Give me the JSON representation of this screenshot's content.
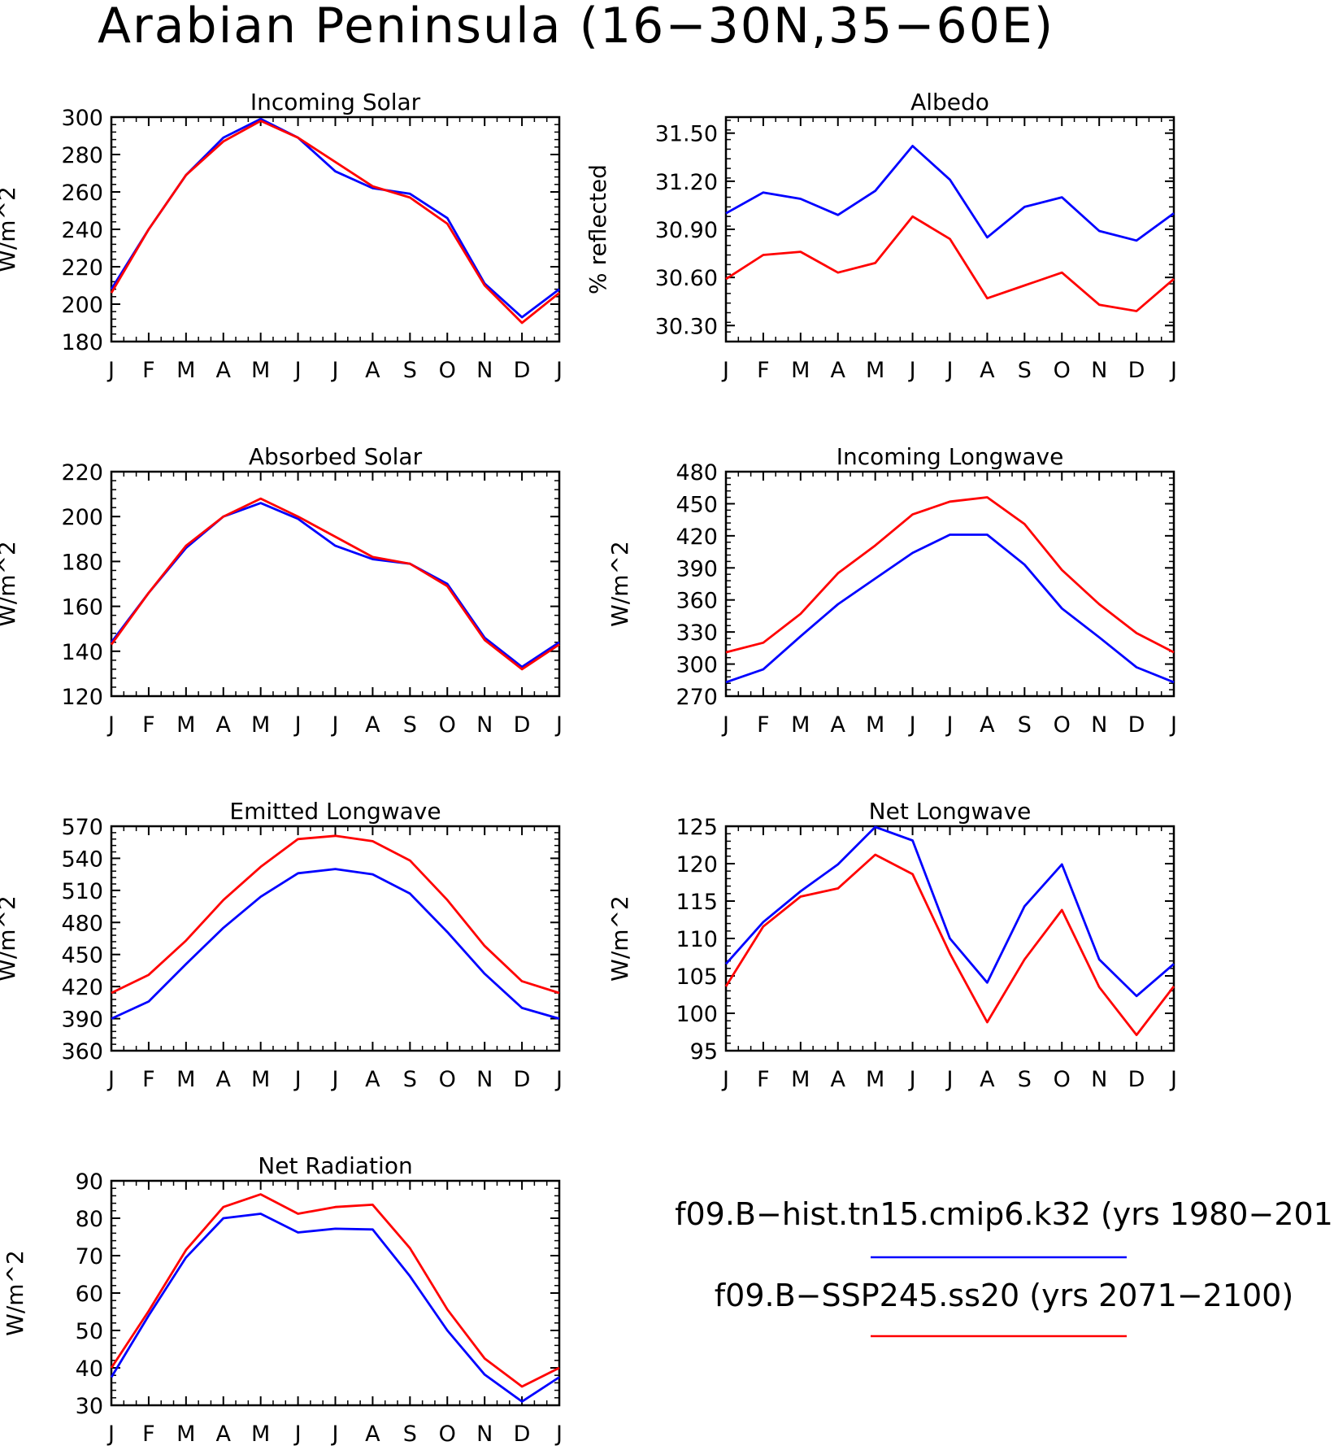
{
  "title": "Arabian Peninsula (16−30N,35−60E)",
  "colors": {
    "hist": "#0000ff",
    "ssp": "#ff0000",
    "axis": "#000000"
  },
  "legend": {
    "items": [
      {
        "label": "f09.B−hist.tn15.cmip6.k32 (yrs 1980−201",
        "color": "#0000ff"
      },
      {
        "label": "f09.B−SSP245.ss20 (yrs 2071−2100)",
        "color": "#ff0000"
      }
    ]
  },
  "chart_data": [
    {
      "id": "incoming-solar",
      "type": "line",
      "title": "Incoming Solar",
      "ylabel": "W/m^2",
      "categories": [
        "J",
        "F",
        "M",
        "A",
        "M",
        "J",
        "J",
        "A",
        "S",
        "O",
        "N",
        "D",
        "J"
      ],
      "ylim": [
        180,
        300
      ],
      "yticks": [
        180,
        200,
        220,
        240,
        260,
        280,
        300
      ],
      "ytick_labels": [
        "180",
        "200",
        "220",
        "240",
        "260",
        "280",
        "300"
      ],
      "series": [
        {
          "key": "hist",
          "values": [
            208,
            240,
            269,
            289,
            299,
            289,
            271,
            262,
            259,
            246,
            211,
            193,
            208
          ]
        },
        {
          "key": "ssp",
          "values": [
            206,
            240,
            269,
            287,
            298,
            289,
            276,
            263,
            257,
            243,
            210,
            190,
            206
          ]
        }
      ]
    },
    {
      "id": "albedo",
      "type": "line",
      "title": "Albedo",
      "ylabel": "% reflected",
      "categories": [
        "J",
        "F",
        "M",
        "A",
        "M",
        "J",
        "J",
        "A",
        "S",
        "O",
        "N",
        "D",
        "J"
      ],
      "ylim": [
        30.2,
        31.6
      ],
      "yticks": [
        30.3,
        30.6,
        30.9,
        31.2,
        31.5
      ],
      "ytick_labels": [
        "30.30",
        "30.60",
        "30.90",
        "31.20",
        "31.50"
      ],
      "series": [
        {
          "key": "hist",
          "values": [
            31.0,
            31.13,
            31.09,
            30.99,
            31.14,
            31.42,
            31.21,
            30.85,
            31.04,
            31.1,
            30.89,
            30.83,
            31.0
          ]
        },
        {
          "key": "ssp",
          "values": [
            30.59,
            30.74,
            30.76,
            30.63,
            30.69,
            30.98,
            30.84,
            30.47,
            30.55,
            30.63,
            30.43,
            30.39,
            30.59
          ]
        }
      ]
    },
    {
      "id": "absorbed-solar",
      "type": "line",
      "title": "Absorbed Solar",
      "ylabel": "W/m^2",
      "categories": [
        "J",
        "F",
        "M",
        "A",
        "M",
        "J",
        "J",
        "A",
        "S",
        "O",
        "N",
        "D",
        "J"
      ],
      "ylim": [
        120,
        220
      ],
      "yticks": [
        120,
        140,
        160,
        180,
        200,
        220
      ],
      "ytick_labels": [
        "120",
        "140",
        "160",
        "180",
        "200",
        "220"
      ],
      "series": [
        {
          "key": "hist",
          "values": [
            144,
            166,
            186,
            200,
            206,
            199,
            187,
            181,
            179,
            170,
            146,
            133,
            144
          ]
        },
        {
          "key": "ssp",
          "values": [
            143,
            166,
            187,
            200,
            208,
            200,
            191,
            182,
            179,
            169,
            145,
            132,
            143
          ]
        }
      ]
    },
    {
      "id": "incoming-longwave",
      "type": "line",
      "title": "Incoming Longwave",
      "ylabel": "W/m^2",
      "categories": [
        "J",
        "F",
        "M",
        "A",
        "M",
        "J",
        "J",
        "A",
        "S",
        "O",
        "N",
        "D",
        "J"
      ],
      "ylim": [
        270,
        480
      ],
      "yticks": [
        270,
        300,
        330,
        360,
        390,
        420,
        450,
        480
      ],
      "ytick_labels": [
        "270",
        "300",
        "330",
        "360",
        "390",
        "420",
        "450",
        "480"
      ],
      "series": [
        {
          "key": "hist",
          "values": [
            283,
            295,
            326,
            356,
            380,
            404,
            421,
            421,
            393,
            352,
            325,
            297,
            283
          ]
        },
        {
          "key": "ssp",
          "values": [
            311,
            320,
            347,
            385,
            411,
            440,
            452,
            456,
            431,
            388,
            356,
            329,
            311
          ]
        }
      ]
    },
    {
      "id": "emitted-longwave",
      "type": "line",
      "title": "Emitted Longwave",
      "ylabel": "W/m^2",
      "categories": [
        "J",
        "F",
        "M",
        "A",
        "M",
        "J",
        "J",
        "A",
        "S",
        "O",
        "N",
        "D",
        "J"
      ],
      "ylim": [
        360,
        570
      ],
      "yticks": [
        360,
        390,
        420,
        450,
        480,
        510,
        540,
        570
      ],
      "ytick_labels": [
        "360",
        "390",
        "420",
        "450",
        "480",
        "510",
        "540",
        "570"
      ],
      "series": [
        {
          "key": "hist",
          "values": [
            390,
            406,
            441,
            475,
            504,
            526,
            530,
            525,
            507,
            471,
            432,
            400,
            390
          ]
        },
        {
          "key": "ssp",
          "values": [
            414,
            431,
            463,
            501,
            532,
            558,
            561,
            556,
            538,
            501,
            458,
            425,
            414
          ]
        }
      ]
    },
    {
      "id": "net-longwave",
      "type": "line",
      "title": "Net Longwave",
      "ylabel": "W/m^2",
      "categories": [
        "J",
        "F",
        "M",
        "A",
        "M",
        "J",
        "J",
        "A",
        "S",
        "O",
        "N",
        "D",
        "J"
      ],
      "ylim": [
        95,
        125
      ],
      "yticks": [
        95,
        100,
        105,
        110,
        115,
        120,
        125
      ],
      "ytick_labels": [
        "95",
        "100",
        "105",
        "110",
        "115",
        "120",
        "125"
      ],
      "series": [
        {
          "key": "hist",
          "values": [
            106.6,
            112.2,
            116.3,
            119.9,
            124.9,
            123.1,
            110.0,
            104.1,
            114.3,
            119.9,
            107.2,
            102.3,
            106.6
          ]
        },
        {
          "key": "ssp",
          "values": [
            103.6,
            111.6,
            115.6,
            116.7,
            121.2,
            118.6,
            108.0,
            98.8,
            107.2,
            113.8,
            103.5,
            97.1,
            103.6
          ]
        }
      ]
    },
    {
      "id": "net-radiation",
      "type": "line",
      "title": "Net Radiation",
      "ylabel": "W/m^2",
      "categories": [
        "J",
        "F",
        "M",
        "A",
        "M",
        "J",
        "J",
        "A",
        "S",
        "O",
        "N",
        "D",
        "J"
      ],
      "ylim": [
        30,
        90
      ],
      "yticks": [
        30,
        40,
        50,
        60,
        70,
        80,
        90
      ],
      "ytick_labels": [
        "30",
        "40",
        "50",
        "60",
        "70",
        "80",
        "90"
      ],
      "series": [
        {
          "key": "hist",
          "values": [
            37.5,
            54,
            69.5,
            80,
            81.2,
            76.2,
            77.2,
            77,
            64.5,
            50,
            38.2,
            31,
            37.5
          ]
        },
        {
          "key": "ssp",
          "values": [
            40,
            55.2,
            71.5,
            83,
            86.4,
            81.2,
            83,
            83.6,
            72,
            55.6,
            42.5,
            35,
            40
          ]
        }
      ]
    }
  ]
}
